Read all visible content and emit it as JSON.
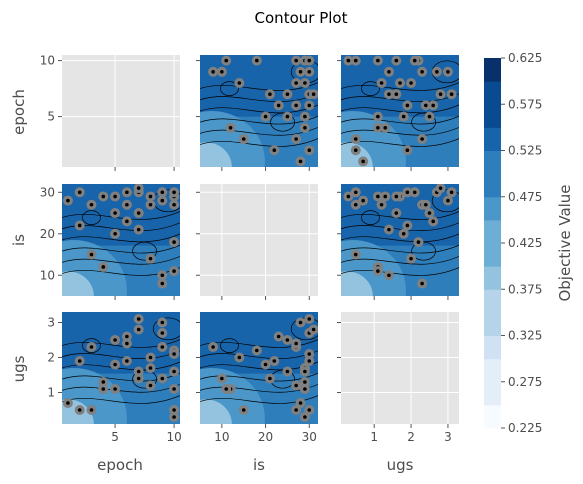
{
  "chart_data": {
    "type": "contour",
    "title": "Contour Plot",
    "params": [
      "epoch",
      "is",
      "ugs"
    ],
    "ranges": {
      "epoch": [
        0.5,
        10.5
      ],
      "is": [
        5,
        32
      ],
      "ugs": [
        0.1,
        3.3
      ]
    },
    "ticks": {
      "epoch_y": [
        "5",
        "10"
      ],
      "epoch_x": [
        "5",
        "10"
      ],
      "is_y": [
        "10",
        "20",
        "30"
      ],
      "is_x": [
        "10",
        "20",
        "30"
      ],
      "ugs_y": [
        "1",
        "2",
        "3"
      ],
      "ugs_x": [
        "1",
        "2",
        "3"
      ]
    },
    "tick_values": {
      "epoch": [
        5,
        10
      ],
      "is": [
        10,
        20,
        30
      ],
      "ugs": [
        1,
        2,
        3
      ]
    },
    "colorbar": {
      "title": "Objective Value",
      "min": 0.225,
      "max": 0.625,
      "tick_labels": [
        "0.225",
        "0.275",
        "0.325",
        "0.375",
        "0.425",
        "0.475",
        "0.525",
        "0.575",
        "0.625"
      ],
      "tick_values": [
        0.225,
        0.275,
        0.325,
        0.375,
        0.425,
        0.475,
        0.525,
        0.575,
        0.625
      ]
    },
    "trials": [
      {
        "epoch": 1,
        "is": 28,
        "ugs": 0.7
      },
      {
        "epoch": 2,
        "is": 30,
        "ugs": 0.5
      },
      {
        "epoch": 3,
        "is": 15,
        "ugs": 0.5
      },
      {
        "epoch": 3,
        "is": 27,
        "ugs": 2.3
      },
      {
        "epoch": 4,
        "is": 12,
        "ugs": 1.1
      },
      {
        "epoch": 4,
        "is": 29,
        "ugs": 1.3
      },
      {
        "epoch": 5,
        "is": 20,
        "ugs": 1.8
      },
      {
        "epoch": 5,
        "is": 25,
        "ugs": 2.5
      },
      {
        "epoch": 6,
        "is": 27,
        "ugs": 2.4
      },
      {
        "epoch": 6,
        "is": 30,
        "ugs": 1.9
      },
      {
        "epoch": 7,
        "is": 25,
        "ugs": 1.6
      },
      {
        "epoch": 7,
        "is": 21,
        "ugs": 1.4
      },
      {
        "epoch": 7,
        "is": 30,
        "ugs": 3.1
      },
      {
        "epoch": 8,
        "is": 29,
        "ugs": 1.7
      },
      {
        "epoch": 8,
        "is": 27,
        "ugs": 1.2
      },
      {
        "epoch": 8,
        "is": 14,
        "ugs": 2.0
      },
      {
        "epoch": 9,
        "is": 30,
        "ugs": 2.7
      },
      {
        "epoch": 9,
        "is": 10,
        "ugs": 1.4
      },
      {
        "epoch": 9,
        "is": 8,
        "ugs": 2.3
      },
      {
        "epoch": 10,
        "is": 27,
        "ugs": 0.5
      },
      {
        "epoch": 10,
        "is": 29,
        "ugs": 0.3
      },
      {
        "epoch": 10,
        "is": 18,
        "ugs": 2.2
      },
      {
        "epoch": 10,
        "is": 29,
        "ugs": 1.6
      },
      {
        "epoch": 10,
        "is": 30,
        "ugs": 2.1
      },
      {
        "epoch": 10,
        "is": 11,
        "ugs": 1.1
      },
      {
        "epoch": 2,
        "is": 22,
        "ugs": 1.9
      },
      {
        "epoch": 6,
        "is": 23,
        "ugs": 2.6
      },
      {
        "epoch": 5,
        "is": 29,
        "ugs": 1.1
      },
      {
        "epoch": 7,
        "is": 31,
        "ugs": 2.8
      },
      {
        "epoch": 9,
        "is": 28,
        "ugs": 3.0
      }
    ]
  }
}
